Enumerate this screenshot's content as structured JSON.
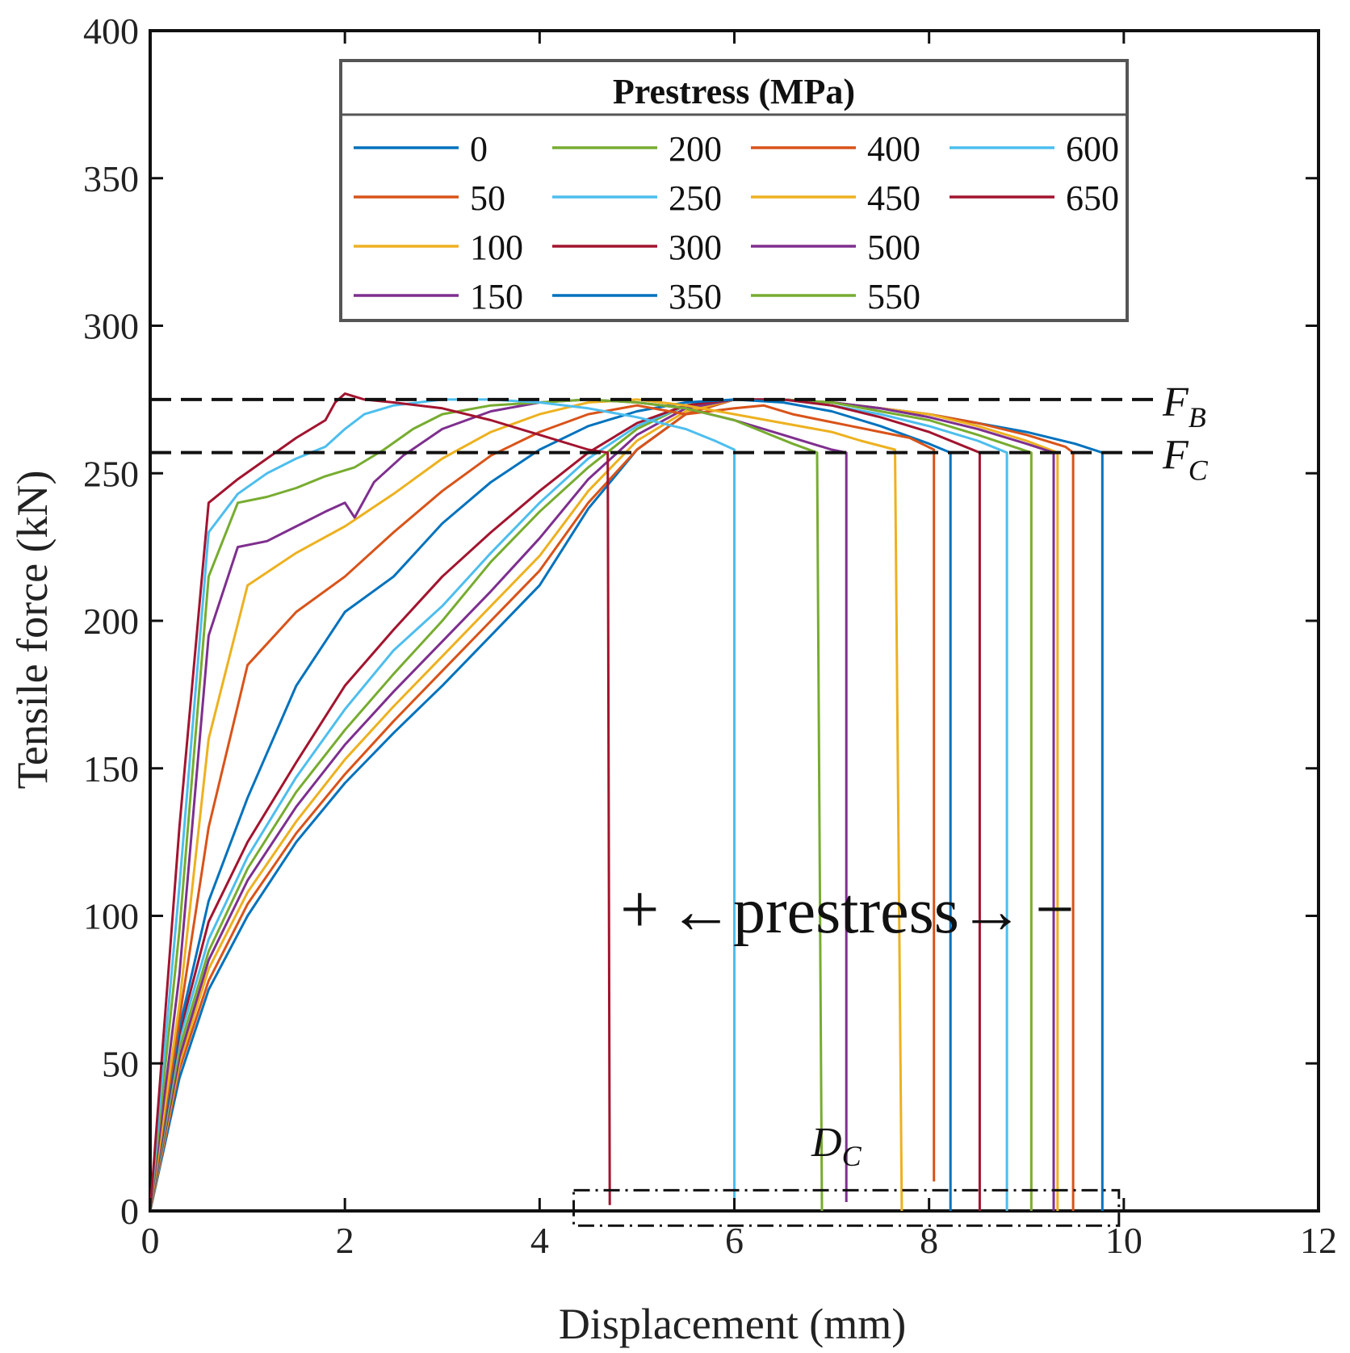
{
  "chart_data": {
    "type": "line",
    "title": "",
    "xlabel": "Displacement (mm)",
    "ylabel": "Tensile force (kN)",
    "xlim": [
      0,
      12
    ],
    "ylim": [
      0,
      400
    ],
    "xticks": [
      0,
      2,
      4,
      6,
      8,
      10,
      12
    ],
    "yticks": [
      0,
      50,
      100,
      150,
      200,
      250,
      300,
      350,
      400
    ],
    "grid": false,
    "legend": {
      "title": "Prestress (MPa)",
      "position": "top-center",
      "columns": 4
    },
    "reference_lines": [
      {
        "name": "F_B",
        "label": "F",
        "subscript": "B",
        "y": 275
      },
      {
        "name": "F_C",
        "label": "F",
        "subscript": "C",
        "y": 257
      }
    ],
    "annotations": {
      "direction_plus": "+",
      "direction_text": "←prestress→",
      "direction_minus": "−",
      "dc_label": "D",
      "dc_subscript": "C",
      "dc_box": {
        "x": [
          4.35,
          9.95
        ],
        "y": [
          -5,
          7
        ]
      }
    },
    "series": [
      {
        "name": "0",
        "color": "#0072BD",
        "x": [
          0,
          0.3,
          0.6,
          1.0,
          1.5,
          2.0,
          2.5,
          3.0,
          3.5,
          4.0,
          4.5,
          5.0,
          5.5,
          6.0,
          6.5,
          7.0,
          7.5,
          8.0,
          8.5,
          9.0,
          9.5,
          9.78,
          9.78
        ],
        "y": [
          0,
          45,
          75,
          100,
          125,
          145,
          162,
          178,
          195,
          212,
          238,
          258,
          270,
          275,
          275,
          274,
          272,
          270,
          267,
          264,
          260,
          257,
          0
        ]
      },
      {
        "name": "50",
        "color": "#D95319",
        "x": [
          0,
          0.3,
          0.6,
          1.0,
          1.5,
          2.0,
          2.5,
          3.0,
          3.5,
          4.0,
          4.5,
          5.0,
          5.5,
          6.0,
          6.5,
          7.0,
          7.5,
          8.0,
          8.5,
          9.0,
          9.4,
          9.48,
          9.48
        ],
        "y": [
          0,
          48,
          78,
          104,
          128,
          148,
          166,
          183,
          200,
          217,
          240,
          258,
          270,
          275,
          275,
          274,
          272,
          270,
          267,
          263,
          259,
          257,
          0
        ]
      },
      {
        "name": "100",
        "color": "#EDB120",
        "x": [
          0,
          0.3,
          0.6,
          1.0,
          1.5,
          2.0,
          2.5,
          3.0,
          3.5,
          4.0,
          4.5,
          5.0,
          5.5,
          6.0,
          6.5,
          7.0,
          7.5,
          8.0,
          8.5,
          9.0,
          9.32,
          9.32
        ],
        "y": [
          0,
          50,
          82,
          108,
          132,
          153,
          171,
          188,
          205,
          222,
          244,
          261,
          271,
          275,
          275,
          274,
          272,
          270,
          266,
          261,
          257,
          0
        ]
      },
      {
        "name": "150",
        "color": "#7E2F8E",
        "x": [
          0,
          0.3,
          0.6,
          1.0,
          1.5,
          2.0,
          2.5,
          3.0,
          3.5,
          4.0,
          4.5,
          5.0,
          5.5,
          6.0,
          6.5,
          7.0,
          7.5,
          8.0,
          8.5,
          9.0,
          9.28,
          9.28
        ],
        "y": [
          0,
          52,
          85,
          112,
          137,
          158,
          176,
          193,
          210,
          228,
          248,
          263,
          272,
          275,
          275,
          274,
          272,
          269,
          265,
          260,
          257,
          0
        ]
      },
      {
        "name": "200",
        "color": "#77AC30",
        "x": [
          0,
          0.3,
          0.6,
          1.0,
          1.5,
          2.0,
          2.5,
          3.0,
          3.5,
          4.0,
          4.5,
          5.0,
          5.5,
          6.0,
          6.5,
          7.0,
          7.5,
          8.0,
          8.5,
          9.05,
          9.05
        ],
        "y": [
          0,
          55,
          88,
          116,
          142,
          163,
          182,
          200,
          220,
          237,
          252,
          265,
          273,
          275,
          275,
          274,
          271,
          268,
          263,
          257,
          0
        ]
      },
      {
        "name": "250",
        "color": "#4DBEEE",
        "x": [
          0,
          0.3,
          0.6,
          1.0,
          1.5,
          2.0,
          2.5,
          3.0,
          3.5,
          4.0,
          4.5,
          5.0,
          5.5,
          6.0,
          6.5,
          7.0,
          7.5,
          8.0,
          8.5,
          8.8,
          8.8
        ],
        "y": [
          0,
          58,
          92,
          120,
          147,
          170,
          190,
          205,
          223,
          240,
          255,
          266,
          273,
          275,
          275,
          273,
          270,
          266,
          261,
          257,
          0
        ]
      },
      {
        "name": "300",
        "color": "#A2142F",
        "x": [
          0,
          0.3,
          0.6,
          1.0,
          1.5,
          2.0,
          2.5,
          3.0,
          3.5,
          4.0,
          4.5,
          5.0,
          5.5,
          6.0,
          6.5,
          7.0,
          7.5,
          8.0,
          8.52,
          8.52
        ],
        "y": [
          0,
          60,
          98,
          125,
          152,
          178,
          197,
          215,
          230,
          244,
          257,
          267,
          273,
          275,
          275,
          273,
          269,
          264,
          257,
          0
        ]
      },
      {
        "name": "350",
        "color": "#0072BD",
        "x": [
          0,
          0.3,
          0.6,
          1.0,
          1.5,
          2.0,
          2.5,
          3.0,
          3.5,
          4.0,
          4.5,
          5.0,
          5.5,
          6.0,
          6.5,
          7.0,
          7.5,
          8.0,
          8.22,
          8.22
        ],
        "y": [
          0,
          62,
          105,
          140,
          178,
          203,
          215,
          233,
          247,
          258,
          266,
          271,
          274,
          275,
          274,
          271,
          266,
          260,
          257,
          0
        ]
      },
      {
        "name": "400",
        "color": "#D95319",
        "x": [
          0,
          0.3,
          0.6,
          1.0,
          1.5,
          2.0,
          2.5,
          3.0,
          3.5,
          4.0,
          4.5,
          5.0,
          5.5,
          6.0,
          6.3,
          6.6,
          6.9,
          7.2,
          7.5,
          7.8,
          8.05,
          8.05
        ],
        "y": [
          0,
          65,
          130,
          185,
          203,
          215,
          230,
          244,
          256,
          264,
          270,
          273,
          270,
          272,
          273,
          270,
          268,
          266,
          264,
          262,
          258,
          10
        ]
      },
      {
        "name": "450",
        "color": "#EDB120",
        "x": [
          0,
          0.3,
          0.6,
          1.0,
          1.5,
          2.0,
          2.5,
          3.0,
          3.5,
          4.0,
          4.5,
          5.0,
          5.5,
          6.0,
          6.5,
          7.0,
          7.3,
          7.65,
          7.72
        ],
        "y": [
          0,
          70,
          160,
          212,
          223,
          232,
          243,
          255,
          264,
          270,
          274,
          275,
          273,
          270,
          267,
          264,
          261,
          258,
          0
        ]
      },
      {
        "name": "500",
        "color": "#7E2F8E",
        "x": [
          0,
          0.3,
          0.6,
          0.9,
          1.2,
          1.5,
          1.8,
          2.0,
          2.1,
          2.3,
          2.6,
          3.0,
          3.5,
          4.0,
          4.5,
          5.0,
          5.5,
          6.0,
          6.5,
          7.0,
          7.15,
          7.15
        ],
        "y": [
          0,
          80,
          195,
          225,
          227,
          232,
          237,
          240,
          235,
          247,
          256,
          265,
          271,
          274,
          275,
          274,
          272,
          268,
          263,
          258,
          257,
          3
        ]
      },
      {
        "name": "550",
        "color": "#77AC30",
        "x": [
          0,
          0.3,
          0.6,
          0.9,
          1.2,
          1.5,
          1.8,
          2.1,
          2.4,
          2.7,
          3.0,
          3.5,
          4.0,
          4.5,
          5.0,
          5.5,
          6.0,
          6.3,
          6.6,
          6.85,
          6.9
        ],
        "y": [
          0,
          95,
          215,
          240,
          242,
          245,
          249,
          252,
          258,
          265,
          270,
          273,
          274,
          275,
          274,
          272,
          268,
          264,
          260,
          257,
          0
        ]
      },
      {
        "name": "600",
        "color": "#4DBEEE",
        "x": [
          0,
          0.3,
          0.6,
          0.9,
          1.2,
          1.5,
          1.8,
          2.0,
          2.2,
          2.5,
          3.0,
          3.5,
          4.0,
          4.5,
          5.0,
          5.5,
          5.8,
          6.0,
          6.0
        ],
        "y": [
          0,
          110,
          230,
          243,
          250,
          255,
          259,
          265,
          270,
          273,
          275,
          275,
          274,
          272,
          269,
          265,
          261,
          258,
          0
        ]
      },
      {
        "name": "650",
        "color": "#A2142F",
        "x": [
          0,
          0.3,
          0.6,
          0.9,
          1.2,
          1.5,
          1.8,
          1.9,
          2.0,
          2.2,
          2.5,
          3.0,
          3.5,
          4.0,
          4.5,
          4.7,
          4.72
        ],
        "y": [
          0,
          130,
          240,
          248,
          255,
          262,
          268,
          274,
          277,
          275,
          274,
          272,
          268,
          263,
          258,
          257,
          2
        ]
      }
    ]
  }
}
